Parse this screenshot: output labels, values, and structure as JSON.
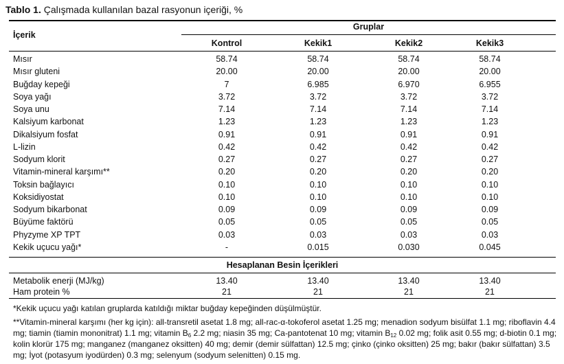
{
  "title": {
    "label": "Tablo 1.",
    "text": "Çalışmada kullanılan bazal rasyonun içeriği, %"
  },
  "header": {
    "ingredient": "İçerik",
    "groups": "Gruplar",
    "columns": [
      "Kontrol",
      "Kekik1",
      "Kekik2",
      "Kekik3"
    ]
  },
  "rows": [
    {
      "name": "Mısır",
      "values": [
        "58.74",
        "58.74",
        "58.74",
        "58.74"
      ]
    },
    {
      "name": "Mısır gluteni",
      "values": [
        "20.00",
        "20.00",
        "20.00",
        "20.00"
      ]
    },
    {
      "name": "Buğday kepeği",
      "values": [
        "7",
        "6.985",
        "6.970",
        "6.955"
      ]
    },
    {
      "name": "Soya yağı",
      "values": [
        "3.72",
        "3.72",
        "3.72",
        "3.72"
      ]
    },
    {
      "name": "Soya unu",
      "values": [
        "7.14",
        "7.14",
        "7.14",
        "7.14"
      ]
    },
    {
      "name": "Kalsiyum karbonat",
      "values": [
        "1.23",
        "1.23",
        "1.23",
        "1.23"
      ]
    },
    {
      "name": "Dikalsiyum fosfat",
      "values": [
        "0.91",
        "0.91",
        "0.91",
        "0.91"
      ]
    },
    {
      "name": "L-lizin",
      "values": [
        "0.42",
        "0.42",
        "0.42",
        "0.42"
      ]
    },
    {
      "name": "Sodyum klorit",
      "values": [
        "0.27",
        "0.27",
        "0.27",
        "0.27"
      ]
    },
    {
      "name": "Vitamin-mineral karşımı**",
      "values": [
        "0.20",
        "0.20",
        "0.20",
        "0.20"
      ]
    },
    {
      "name": "Toksin bağlayıcı",
      "values": [
        "0.10",
        "0.10",
        "0.10",
        "0.10"
      ]
    },
    {
      "name": "Koksidiyostat",
      "values": [
        "0.10",
        "0.10",
        "0.10",
        "0.10"
      ]
    },
    {
      "name": "Sodyum bikarbonat",
      "values": [
        "0.09",
        "0.09",
        "0.09",
        "0.09"
      ]
    },
    {
      "name": "Büyüme faktörü",
      "values": [
        "0.05",
        "0.05",
        "0.05",
        "0.05"
      ]
    },
    {
      "name": "Phyzyme XP TPT",
      "values": [
        "0.03",
        "0.03",
        "0.03",
        "0.03"
      ]
    },
    {
      "name": "Kekik uçucu yağı*",
      "values": [
        "-",
        "0.015",
        "0.030",
        "0.045"
      ]
    }
  ],
  "section_title": "Hesaplanan Besin İçerikleri",
  "calc_rows": [
    {
      "name": "Metabolik enerji (MJ/kg)",
      "values": [
        "13.40",
        "13.40",
        "13.40",
        "13.40"
      ]
    },
    {
      "name": "Ham protein %",
      "values": [
        "21",
        "21",
        "21",
        "21"
      ]
    }
  ],
  "footnotes": {
    "note1": "*Kekik uçucu yağı katılan gruplarda katıldığı miktar buğday kepeğinden düşülmüştür.",
    "note2_a": "**Vitamin-mineral karşımı (her kg için): all-transretil asetat 1.8 mg; all-rac-α-tokoferol asetat 1.25 mg; menadion sodyum bisülfat 1.1 mg; riboflavin 4.4 mg; tiamin (tiamin mononitrat) 1.1 mg; vitamin B",
    "sub_b6": "6",
    "note2_b": " 2.2 mg; niasin 35 mg; Ca-pantotenat 10 mg; vitamin B",
    "sub_b12": "12",
    "note2_c": " 0.02 mg; folik asit 0.55 mg; d-biotin 0.1 mg; kolin klorür 175 mg; manganez (manganez oksitten) 40 mg; demir (demir sülfattan) 12.5 mg; çinko (çinko oksitten) 25 mg; bakır (bakır sülfattan) 3.5 mg; İyot (potasyum iyodürden) 0.3 mg; selenyum (sodyum selenitten) 0.15 mg."
  }
}
